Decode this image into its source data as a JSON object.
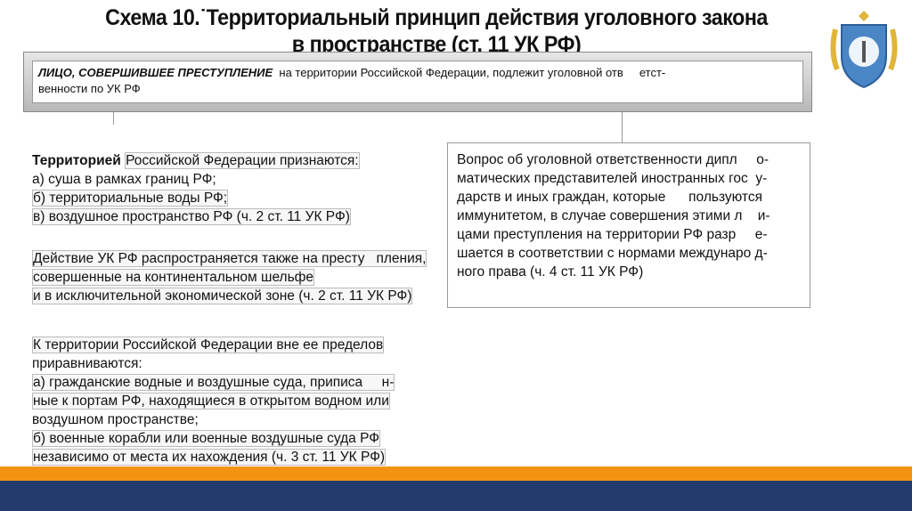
{
  "title": {
    "line1": "Схема 10.˙Территориальный принцип действия уголовного закона",
    "line2": "в пространстве (ст. 11 УК РФ)"
  },
  "header_box": {
    "bold": "ЛИЦО, СОВЕРШИВШЕЕ ПРЕСТУПЛЕНИЕ",
    "line1_rest": "  на территории Российской Федерации, подлежит уголовной отв     етст-",
    "line2": "венности по УК РФ"
  },
  "territory": {
    "bold": "Территорией",
    "rest": "Российской Федерации признаются:",
    "items": [
      "а) суша в рамках границ РФ;",
      "б) территориальные воды РФ;",
      "в) воздушное пространство РФ (ч. 2 ст. 11 УК РФ)"
    ]
  },
  "shelf": {
    "lines": [
      "Действие УК РФ распространяется также на престу   пления,",
      "совершенные на континентальном шельфе",
      "и в исключительной экономической зоне (ч. 2 ст. 11 УК РФ)"
    ]
  },
  "equated": {
    "lines": [
      "К территории Российской Федерации вне ее пределов",
      "приравниваются:",
      "а) гражданские водные и воздушные суда, приписа     н-",
      "ные к портам РФ, находящиеся в открытом водном или",
      "воздушном пространстве;",
      "б) военные корабли или военные воздушные суда РФ",
      "независимо от места их нахождения (ч. 3 ст. 11 УК РФ)"
    ]
  },
  "diplomats": {
    "lines": [
      "Вопрос об уголовной ответственности дипл     о-",
      "матических представителей иностранных гос  у-",
      "дарств и иных граждан, которые      пользуются",
      "иммунитетом, в случае совершения этими л    и-",
      "цами преступления на территории РФ разр     е-",
      "шается в соответствии с нормами междунаро д-",
      "ного права (ч. 4 ст. 11 УК РФ)"
    ]
  },
  "colors": {
    "orange": "#f29412",
    "navy": "#233a6e"
  },
  "logo": {
    "icon": "police-academy-shield-emblem"
  }
}
